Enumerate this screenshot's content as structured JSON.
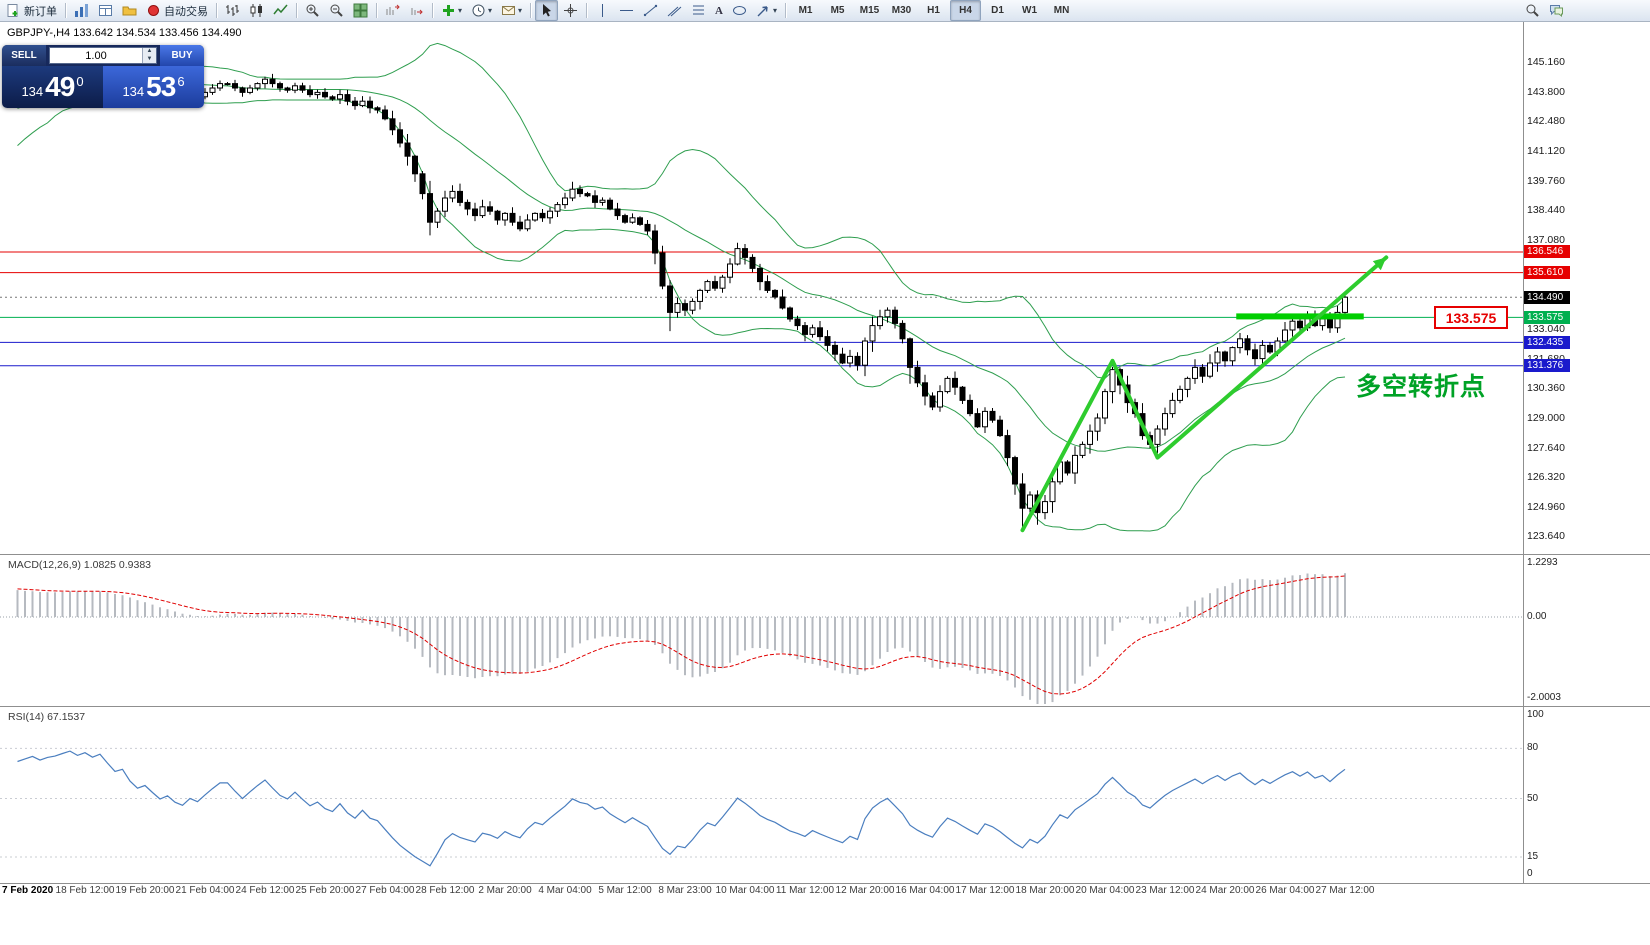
{
  "toolbar": {
    "new_order_label": "新订单",
    "autotrading_label": "自动交易",
    "timeframes": [
      "M1",
      "M5",
      "M15",
      "M30",
      "H1",
      "H4",
      "D1",
      "W1",
      "MN"
    ],
    "active_timeframe": "H4"
  },
  "chart": {
    "title": "GBPJPY-,H4 133.642 134.534 133.456 134.490"
  },
  "trade_panel": {
    "sell_label": "SELL",
    "buy_label": "BUY",
    "volume": "1.00",
    "sell": {
      "main": "134",
      "big": "49",
      "sup": "0"
    },
    "buy": {
      "main": "134",
      "big": "53",
      "sup": "6"
    }
  },
  "price_axis": {
    "ticks": [
      "145.160",
      "143.800",
      "142.480",
      "141.120",
      "139.760",
      "138.440",
      "137.080",
      "133.040",
      "131.680",
      "130.360",
      "129.000",
      "127.640",
      "126.320",
      "124.960",
      "123.640"
    ],
    "levels": [
      {
        "label": "136.546",
        "value": 136.546,
        "color": "#e60000"
      },
      {
        "label": "135.610",
        "value": 135.61,
        "color": "#e60000"
      },
      {
        "label": "133.575",
        "value": 133.575,
        "color": "#00b050"
      },
      {
        "label": "132.435",
        "value": 132.435,
        "color": "#1a1acc"
      },
      {
        "label": "131.376",
        "value": 131.376,
        "color": "#1a1acc"
      }
    ],
    "current": {
      "label": "134.490",
      "value": 134.49,
      "color": "#000000"
    }
  },
  "indicators": {
    "macd": {
      "label": "MACD(12,26,9) 1.0825 0.9383",
      "scale": [
        "1.2293",
        "0.00",
        "-2.0003"
      ]
    },
    "rsi": {
      "label": "RSI(14) 67.1537",
      "scale": [
        "100",
        "80",
        "50",
        "15",
        "0"
      ]
    }
  },
  "annotations": {
    "callout": "133.575",
    "note": "多空转折点",
    "zigzag": [
      {
        "i": 134,
        "p": 123.9
      },
      {
        "i": 146,
        "p": 131.6
      },
      {
        "i": 152,
        "p": 127.2
      },
      {
        "i": 182.5,
        "p": 136.3
      }
    ],
    "support_bar": {
      "i1": 162.5,
      "i2": 179.5,
      "p": 133.62
    }
  },
  "time_axis": {
    "labels": [
      "7 Feb 2020",
      "18 Feb 12:00",
      "19 Feb 20:00",
      "21 Feb 04:00",
      "24 Feb 12:00",
      "25 Feb 20:00",
      "27 Feb 04:00",
      "28 Feb 12:00",
      "2 Mar 20:00",
      "4 Mar 04:00",
      "5 Mar 12:00",
      "8 Mar 23:00",
      "10 Mar 04:00",
      "11 Mar 12:00",
      "12 Mar 20:00",
      "16 Mar 04:00",
      "17 Mar 12:00",
      "18 Mar 20:00",
      "20 Mar 04:00",
      "23 Mar 12:00",
      "24 Mar 20:00",
      "26 Mar 04:00",
      "27 Mar 12:00"
    ]
  },
  "chart_data": {
    "type": "candlestick",
    "symbol": "GBPJPY",
    "timeframe": "H4",
    "ohlc_current": {
      "open": 133.642,
      "high": 134.534,
      "low": 133.456,
      "close": 134.49
    },
    "bollinger": {
      "period": 20,
      "deviation": 2
    },
    "macd": {
      "fast": 12,
      "slow": 26,
      "signal": 9
    },
    "rsi": {
      "period": 14
    },
    "pre_closes": [
      141.0,
      141.3,
      141.6,
      141.9,
      142.2,
      142.0,
      142.4,
      142.8,
      143.1,
      143.4,
      143.2,
      143.6,
      143.9,
      144.1,
      143.8,
      144.0,
      143.7,
      143.5,
      143.8,
      143.6
    ],
    "closes": [
      143.6,
      143.8,
      144.0,
      143.9,
      144.1,
      144.2,
      144.4,
      144.6,
      144.5,
      144.7,
      144.6,
      144.8,
      144.6,
      144.4,
      144.5,
      144.2,
      144.0,
      144.1,
      143.9,
      143.7,
      143.8,
      143.6,
      143.5,
      143.7,
      143.6,
      143.8,
      144.0,
      144.2,
      144.2,
      144.0,
      143.8,
      144.0,
      144.2,
      144.4,
      144.2,
      144.0,
      143.9,
      144.1,
      143.9,
      143.7,
      143.8,
      143.6,
      143.5,
      143.7,
      143.4,
      143.2,
      143.4,
      143.1,
      143.0,
      142.6,
      142.1,
      141.5,
      140.9,
      140.1,
      139.2,
      137.9,
      138.4,
      139.0,
      139.3,
      138.8,
      138.5,
      138.2,
      138.6,
      138.4,
      138.0,
      138.3,
      137.9,
      137.6,
      138.0,
      138.3,
      138.1,
      138.4,
      138.7,
      139.0,
      139.4,
      139.2,
      139.1,
      138.8,
      138.9,
      138.5,
      138.2,
      137.9,
      138.1,
      137.8,
      137.5,
      136.5,
      135.0,
      133.8,
      134.2,
      133.9,
      134.3,
      134.8,
      135.2,
      134.9,
      135.4,
      136.0,
      136.7,
      136.3,
      135.8,
      135.2,
      134.8,
      134.5,
      134.0,
      133.5,
      133.2,
      132.8,
      133.1,
      132.7,
      132.3,
      131.9,
      131.5,
      131.8,
      131.4,
      132.5,
      133.2,
      133.6,
      133.9,
      133.3,
      132.6,
      131.3,
      130.6,
      130.0,
      129.5,
      130.2,
      130.8,
      130.4,
      129.8,
      129.2,
      128.6,
      129.3,
      128.9,
      128.2,
      127.2,
      126.0,
      124.9,
      125.5,
      124.7,
      125.2,
      126.1,
      127.0,
      126.5,
      127.3,
      127.8,
      128.4,
      129.0,
      130.2,
      131.2,
      130.5,
      129.7,
      129.2,
      128.2,
      127.8,
      128.5,
      129.2,
      129.8,
      130.3,
      130.8,
      131.3,
      130.9,
      131.5,
      132.0,
      131.6,
      132.2,
      132.6,
      132.1,
      131.7,
      132.3,
      132.0,
      132.5,
      133.0,
      133.4,
      133.1,
      133.6,
      133.2,
      133.5,
      133.1,
      133.8,
      134.49
    ],
    "wick_overrides": {
      "55": {
        "low": 137.3
      },
      "87": {
        "low": 132.95
      },
      "134": {
        "low": 123.95
      },
      "136": {
        "low": 124.15
      },
      "177": {
        "high": 134.6
      }
    }
  }
}
